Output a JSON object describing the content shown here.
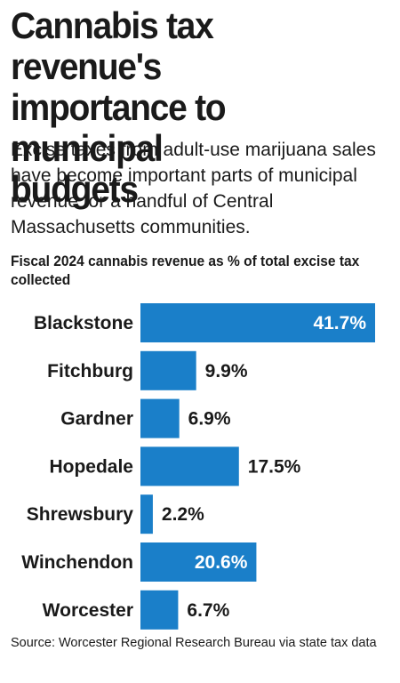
{
  "title": "Cannabis tax revenue's\nimportance to municipal\nbudgets",
  "subtitle": "Excise taxes from adult-use marijuana sales have become important parts of municipal revenue for a handful of Central Massachusetts communities.",
  "source": "Source: Worcester Regional Research Bureau via state tax data",
  "colors": {
    "bar": "#1a7fc9",
    "text": "#1a1a1a",
    "inside_label": "#ffffff"
  },
  "chart_data": {
    "type": "bar",
    "orientation": "horizontal",
    "title": "Fiscal 2024 cannabis revenue as % of total excise tax collected",
    "categories": [
      "Blackstone",
      "Fitchburg",
      "Gardner",
      "Hopedale",
      "Shrewsbury",
      "Winchendon",
      "Worcester"
    ],
    "values": [
      41.7,
      9.9,
      6.9,
      17.5,
      2.2,
      20.6,
      6.7
    ],
    "value_labels": [
      "41.7%",
      "9.9%",
      "6.9%",
      "17.5%",
      "2.2%",
      "20.6%",
      "6.7%"
    ],
    "xlim": [
      0,
      41.7
    ],
    "grid": false,
    "legend": "none"
  }
}
